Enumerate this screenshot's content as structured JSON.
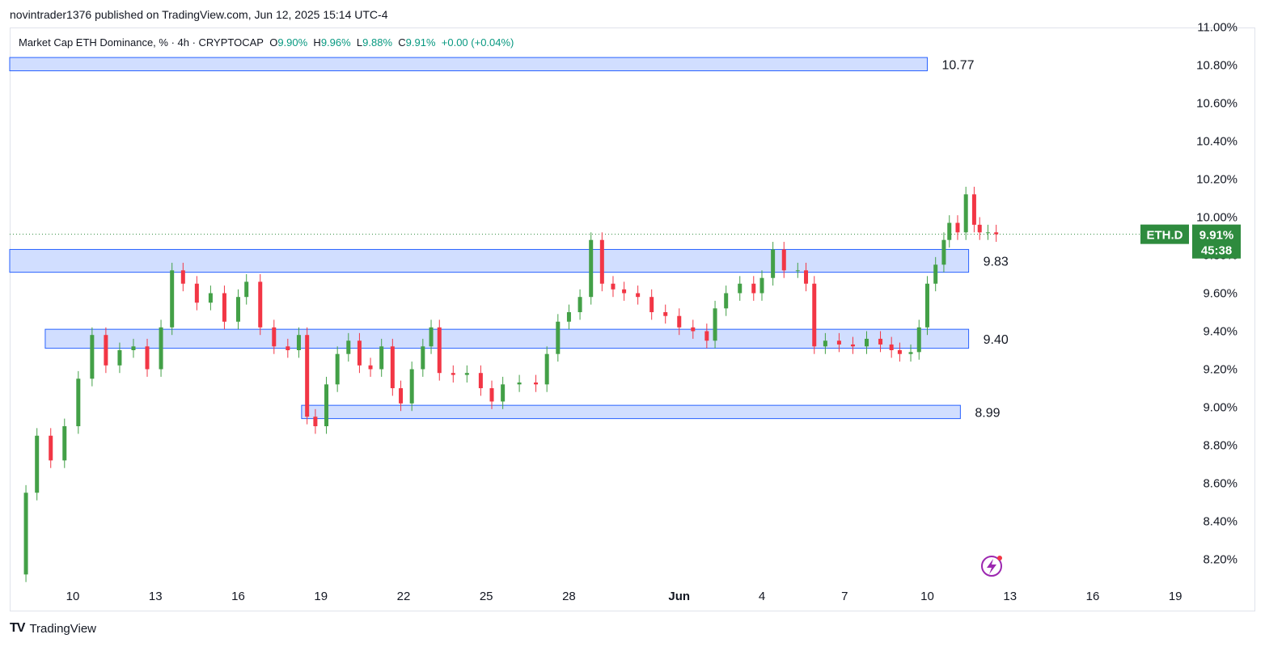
{
  "header": {
    "caption": "novintrader1376 published on TradingView.com, Jun 12, 2025 15:14 UTC-4"
  },
  "legend": {
    "title": "Market Cap ETH Dominance, % · 4h · CRYPTOCAP",
    "o_label": "O",
    "o_value": "9.90%",
    "h_label": "H",
    "h_value": "9.96%",
    "l_label": "L",
    "l_value": "9.88%",
    "c_label": "C",
    "c_value": "9.91%",
    "change": "+0.00 (+0.04%)"
  },
  "price_tag": {
    "symbol": "ETH.D",
    "price": "9.91%",
    "countdown": "45:38",
    "color": "#2e8b3e"
  },
  "colors": {
    "up": "#43a047",
    "down": "#f23645",
    "zone_fill": "#d1deff",
    "zone_border": "#2962ff"
  },
  "footer": {
    "brand": "TradingView",
    "logo_glyph": "TV"
  },
  "chart_data": {
    "type": "candlestick",
    "title": "Market Cap ETH Dominance, % · 4h · CRYPTOCAP",
    "y_axis": {
      "unit": "%",
      "range": [
        8.1,
        11.0
      ],
      "ticks": [
        "11.00%",
        "10.80%",
        "10.60%",
        "10.40%",
        "10.20%",
        "10.00%",
        "9.80%",
        "9.60%",
        "9.40%",
        "9.20%",
        "9.00%",
        "8.80%",
        "8.60%",
        "8.40%",
        "8.20%"
      ],
      "tick_values": [
        11.0,
        10.8,
        10.6,
        10.4,
        10.2,
        10.0,
        9.8,
        9.6,
        9.4,
        9.2,
        9.0,
        8.8,
        8.6,
        8.4,
        8.2
      ]
    },
    "x_axis": {
      "ticks": [
        "10",
        "13",
        "16",
        "19",
        "22",
        "25",
        "28",
        "Jun",
        "4",
        "7",
        "10",
        "13",
        "16",
        "19"
      ],
      "tick_days": [
        10,
        13,
        16,
        19,
        22,
        25,
        28,
        32,
        35,
        38,
        41,
        44,
        47,
        50
      ]
    },
    "current_price": 9.91,
    "zones": [
      {
        "label": "10.77",
        "low": 10.77,
        "high": 10.84,
        "from_day": 7.5,
        "to_day": 41.0
      },
      {
        "label": "9.83",
        "low": 9.71,
        "high": 9.83,
        "from_day": 7.5,
        "to_day": 42.5
      },
      {
        "label": "9.40",
        "low": 9.31,
        "high": 9.41,
        "from_day": 9.0,
        "to_day": 42.5
      },
      {
        "label": "8.99",
        "low": 8.94,
        "high": 9.01,
        "from_day": 18.3,
        "to_day": 42.2
      }
    ],
    "series": [
      {
        "day": 7.8,
        "value": 8.12
      },
      {
        "day": 8.3,
        "value": 8.55
      },
      {
        "day": 8.7,
        "value": 8.85
      },
      {
        "day": 9.2,
        "value": 8.72
      },
      {
        "day": 9.7,
        "value": 8.9
      },
      {
        "day": 10.2,
        "value": 9.15
      },
      {
        "day": 10.7,
        "value": 9.38
      },
      {
        "day": 11.2,
        "value": 9.22
      },
      {
        "day": 11.7,
        "value": 9.3
      },
      {
        "day": 12.2,
        "value": 9.32
      },
      {
        "day": 12.7,
        "value": 9.2
      },
      {
        "day": 13.2,
        "value": 9.42
      },
      {
        "day": 13.6,
        "value": 9.72
      },
      {
        "day": 14.0,
        "value": 9.65
      },
      {
        "day": 14.5,
        "value": 9.55
      },
      {
        "day": 15.0,
        "value": 9.6
      },
      {
        "day": 15.5,
        "value": 9.45
      },
      {
        "day": 16.0,
        "value": 9.58
      },
      {
        "day": 16.3,
        "value": 9.66
      },
      {
        "day": 16.8,
        "value": 9.42
      },
      {
        "day": 17.3,
        "value": 9.32
      },
      {
        "day": 17.8,
        "value": 9.3
      },
      {
        "day": 18.2,
        "value": 9.38
      },
      {
        "day": 18.5,
        "value": 8.95
      },
      {
        "day": 18.8,
        "value": 8.9
      },
      {
        "day": 19.2,
        "value": 9.12
      },
      {
        "day": 19.6,
        "value": 9.28
      },
      {
        "day": 20.0,
        "value": 9.35
      },
      {
        "day": 20.4,
        "value": 9.22
      },
      {
        "day": 20.8,
        "value": 9.2
      },
      {
        "day": 21.2,
        "value": 9.32
      },
      {
        "day": 21.6,
        "value": 9.1
      },
      {
        "day": 21.9,
        "value": 9.02
      },
      {
        "day": 22.3,
        "value": 9.2
      },
      {
        "day": 22.7,
        "value": 9.32
      },
      {
        "day": 23.0,
        "value": 9.42
      },
      {
        "day": 23.3,
        "value": 9.18
      },
      {
        "day": 23.8,
        "value": 9.17
      },
      {
        "day": 24.3,
        "value": 9.18
      },
      {
        "day": 24.8,
        "value": 9.1
      },
      {
        "day": 25.2,
        "value": 9.03
      },
      {
        "day": 25.6,
        "value": 9.12
      },
      {
        "day": 26.2,
        "value": 9.13
      },
      {
        "day": 26.8,
        "value": 9.12
      },
      {
        "day": 27.2,
        "value": 9.28
      },
      {
        "day": 27.6,
        "value": 9.45
      },
      {
        "day": 28.0,
        "value": 9.5
      },
      {
        "day": 28.4,
        "value": 9.58
      },
      {
        "day": 28.8,
        "value": 9.88
      },
      {
        "day": 29.2,
        "value": 9.65
      },
      {
        "day": 29.6,
        "value": 9.62
      },
      {
        "day": 30.0,
        "value": 9.6
      },
      {
        "day": 30.5,
        "value": 9.58
      },
      {
        "day": 31.0,
        "value": 9.5
      },
      {
        "day": 31.5,
        "value": 9.48
      },
      {
        "day": 32.0,
        "value": 9.42
      },
      {
        "day": 32.5,
        "value": 9.4
      },
      {
        "day": 33.0,
        "value": 9.35
      },
      {
        "day": 33.3,
        "value": 9.52
      },
      {
        "day": 33.7,
        "value": 9.6
      },
      {
        "day": 34.2,
        "value": 9.65
      },
      {
        "day": 34.7,
        "value": 9.6
      },
      {
        "day": 35.0,
        "value": 9.68
      },
      {
        "day": 35.4,
        "value": 9.83
      },
      {
        "day": 35.8,
        "value": 9.72
      },
      {
        "day": 36.3,
        "value": 9.72
      },
      {
        "day": 36.6,
        "value": 9.65
      },
      {
        "day": 36.9,
        "value": 9.32
      },
      {
        "day": 37.3,
        "value": 9.35
      },
      {
        "day": 37.8,
        "value": 9.33
      },
      {
        "day": 38.3,
        "value": 9.32
      },
      {
        "day": 38.8,
        "value": 9.36
      },
      {
        "day": 39.3,
        "value": 9.33
      },
      {
        "day": 39.7,
        "value": 9.3
      },
      {
        "day": 40.0,
        "value": 9.28
      },
      {
        "day": 40.4,
        "value": 9.29
      },
      {
        "day": 40.7,
        "value": 9.42
      },
      {
        "day": 41.0,
        "value": 9.65
      },
      {
        "day": 41.3,
        "value": 9.75
      },
      {
        "day": 41.6,
        "value": 9.88
      },
      {
        "day": 41.8,
        "value": 9.97
      },
      {
        "day": 42.1,
        "value": 9.92
      },
      {
        "day": 42.4,
        "value": 10.12
      },
      {
        "day": 42.7,
        "value": 9.96
      },
      {
        "day": 42.9,
        "value": 9.92
      },
      {
        "day": 43.2,
        "value": 9.92
      },
      {
        "day": 43.5,
        "value": 9.91
      }
    ]
  }
}
